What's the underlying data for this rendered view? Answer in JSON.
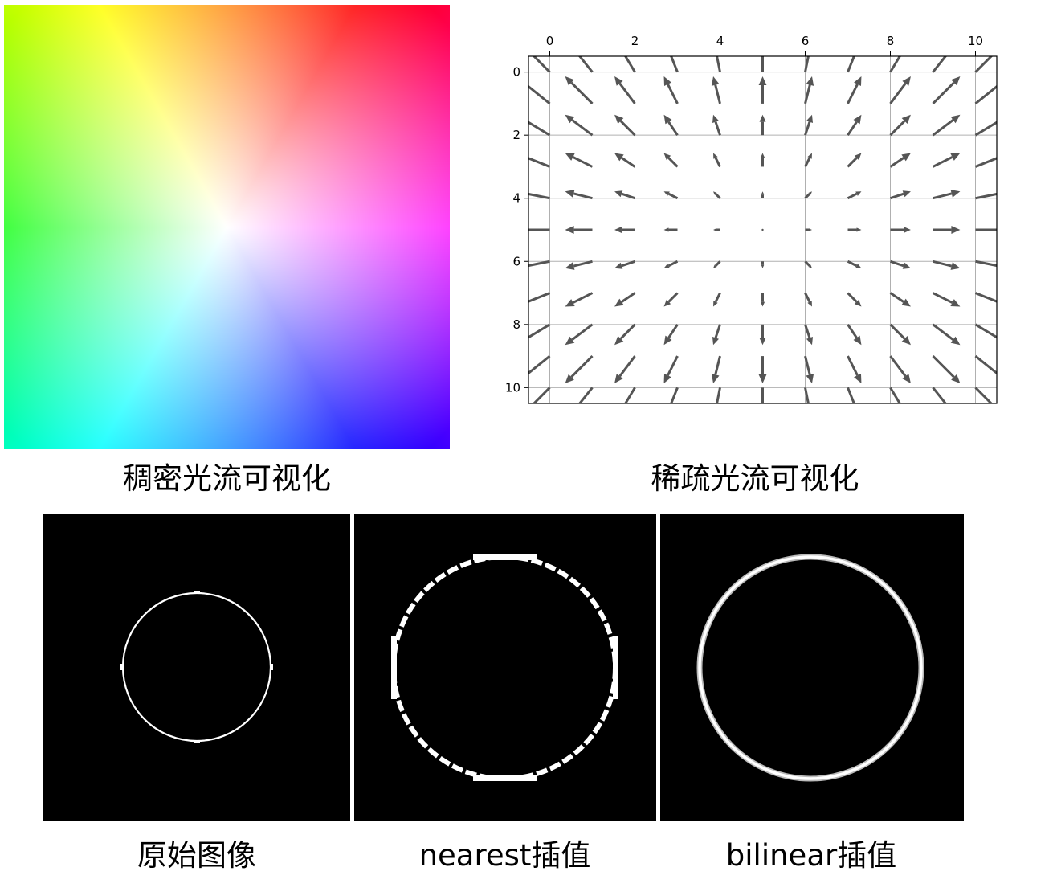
{
  "captions": {
    "dense": "稠密光流可视化",
    "sparse": "稀疏光流可视化",
    "original": "原始图像",
    "nearest": "nearest插值",
    "bilinear": "bilinear插值"
  },
  "chart_data": {
    "type": "quiver",
    "title": "",
    "xlabel": "",
    "ylabel": "",
    "x_ticks": [
      0,
      2,
      4,
      6,
      8,
      10
    ],
    "y_ticks": [
      0,
      2,
      4,
      6,
      8,
      10
    ],
    "xlim": [
      -0.5,
      10.5
    ],
    "ylim": [
      10.5,
      -0.5
    ],
    "grid": true,
    "field": "radial outward from center (5, 5)",
    "center": [
      5,
      5
    ],
    "grid_points": [
      0,
      1,
      2,
      3,
      4,
      5,
      6,
      7,
      8,
      9,
      10
    ],
    "arrow_color": "#555555"
  },
  "colors": {
    "panel_background": "#000000",
    "circle_stroke": "#ffffff",
    "separator": "#ffffff"
  }
}
